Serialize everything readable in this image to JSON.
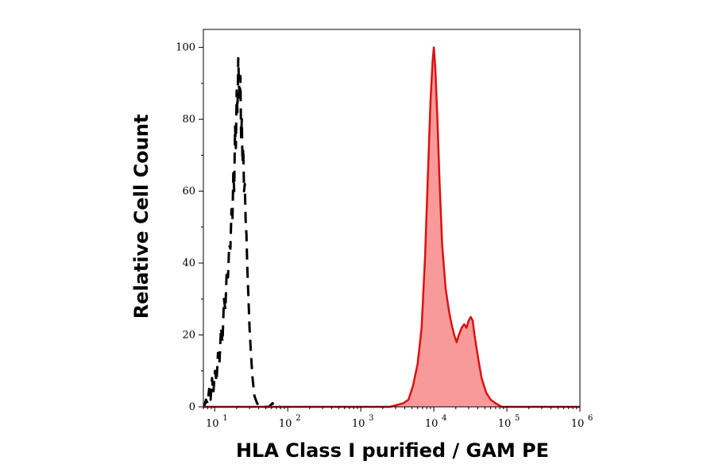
{
  "chart_data": {
    "type": "area",
    "title": "",
    "xlabel": "HLA Class I purified / GAM PE",
    "ylabel": "Relative Cell Count",
    "x_scale": "log",
    "xlim": [
      7,
      1000000
    ],
    "ylim": [
      0,
      105
    ],
    "x_ticks": [
      {
        "base": "10",
        "exp": "1",
        "value": 10
      },
      {
        "base": "10",
        "exp": "2",
        "value": 100
      },
      {
        "base": "10",
        "exp": "3",
        "value": 1000
      },
      {
        "base": "10",
        "exp": "4",
        "value": 10000
      },
      {
        "base": "10",
        "exp": "5",
        "value": 100000
      },
      {
        "base": "10",
        "exp": "6",
        "value": 1000000
      }
    ],
    "y_ticks": [
      0,
      20,
      40,
      60,
      80,
      100
    ],
    "grid": false,
    "legend": "none",
    "series": [
      {
        "style": "dashed",
        "color": "#000000",
        "fill": "none",
        "points": [
          [
            7.2,
            0
          ],
          [
            7.6,
            2
          ],
          [
            8.0,
            1
          ],
          [
            8.4,
            5
          ],
          [
            8.8,
            2
          ],
          [
            9.2,
            8
          ],
          [
            9.6,
            4
          ],
          [
            10.1,
            10
          ],
          [
            10.6,
            7
          ],
          [
            11.1,
            15
          ],
          [
            11.6,
            12
          ],
          [
            12.2,
            22
          ],
          [
            12.8,
            18
          ],
          [
            13.4,
            30
          ],
          [
            14.0,
            27
          ],
          [
            14.6,
            38
          ],
          [
            15.2,
            36
          ],
          [
            15.8,
            45
          ],
          [
            16.4,
            44
          ],
          [
            17.0,
            55
          ],
          [
            17.5,
            52
          ],
          [
            18.0,
            65
          ],
          [
            18.5,
            60
          ],
          [
            19.0,
            78
          ],
          [
            19.5,
            72
          ],
          [
            20.0,
            88
          ],
          [
            20.5,
            82
          ],
          [
            21.0,
            97
          ],
          [
            21.5,
            90
          ],
          [
            22.0,
            85
          ],
          [
            22.5,
            92
          ],
          [
            23.0,
            75
          ],
          [
            23.5,
            80
          ],
          [
            24.0,
            68
          ],
          [
            24.6,
            72
          ],
          [
            25.2,
            60
          ],
          [
            25.8,
            62
          ],
          [
            26.5,
            52
          ],
          [
            27.2,
            48
          ],
          [
            28.0,
            38
          ],
          [
            29.0,
            30
          ],
          [
            30.0,
            22
          ],
          [
            31.5,
            14
          ],
          [
            33.0,
            8
          ],
          [
            35.0,
            3
          ],
          [
            38.0,
            1
          ],
          [
            42.0,
            0
          ],
          [
            55.0,
            0
          ],
          [
            62.0,
            1
          ],
          [
            66.0,
            0
          ],
          [
            80.0,
            0
          ]
        ]
      },
      {
        "style": "solid",
        "color": "#dd1111",
        "fill": "#f99a9a",
        "points": [
          [
            7,
            0
          ],
          [
            2500,
            0
          ],
          [
            3800,
            1
          ],
          [
            4500,
            2
          ],
          [
            5200,
            6
          ],
          [
            6000,
            12
          ],
          [
            6800,
            22
          ],
          [
            7600,
            42
          ],
          [
            8300,
            65
          ],
          [
            9000,
            85
          ],
          [
            9600,
            96
          ],
          [
            10000,
            100
          ],
          [
            10500,
            94
          ],
          [
            11200,
            80
          ],
          [
            12000,
            62
          ],
          [
            13000,
            45
          ],
          [
            14500,
            33
          ],
          [
            16000,
            27
          ],
          [
            17500,
            23
          ],
          [
            19000,
            20
          ],
          [
            20500,
            18
          ],
          [
            22000,
            20
          ],
          [
            24000,
            22
          ],
          [
            26000,
            23
          ],
          [
            28000,
            22
          ],
          [
            30000,
            24
          ],
          [
            32000,
            25
          ],
          [
            34000,
            24
          ],
          [
            36000,
            20
          ],
          [
            40000,
            14
          ],
          [
            45000,
            8
          ],
          [
            52000,
            4
          ],
          [
            60000,
            2
          ],
          [
            70000,
            1
          ],
          [
            85000,
            0
          ],
          [
            1000000,
            0
          ]
        ]
      }
    ]
  }
}
